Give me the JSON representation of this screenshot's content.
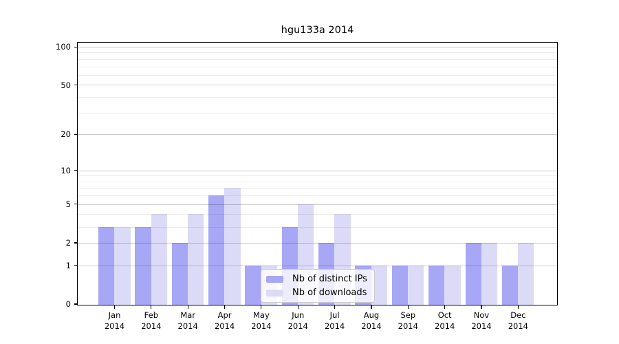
{
  "chart_data": {
    "type": "bar",
    "title": "hgu133a 2014",
    "categories": [
      "Jan",
      "Feb",
      "Mar",
      "Apr",
      "May",
      "Jun",
      "Jul",
      "Aug",
      "Sep",
      "Oct",
      "Nov",
      "Dec"
    ],
    "category_year": "2014",
    "series": [
      {
        "name": "Nb of distinct IPs",
        "color": "#a7a7f5",
        "values": [
          3,
          3,
          2,
          6,
          1,
          3,
          2,
          1,
          1,
          1,
          2,
          1
        ]
      },
      {
        "name": "Nb of downloads",
        "color": "#dbdbf8",
        "values": [
          3,
          4,
          4,
          7,
          1,
          5,
          4,
          1,
          1,
          1,
          2,
          2
        ]
      }
    ],
    "y_scale": "log1p",
    "ylim": [
      0,
      105
    ],
    "y_ticks_major": [
      0,
      1,
      2,
      5,
      10,
      20,
      50,
      100
    ],
    "y_gridlines_major": [
      1,
      2,
      5,
      10,
      20,
      50,
      100
    ],
    "y_gridlines_minor": [
      3,
      4,
      6,
      7,
      8,
      9,
      30,
      40,
      60,
      70,
      80,
      90
    ],
    "grid": true,
    "legend_position": "lower center inside",
    "xlabel": "",
    "ylabel": ""
  },
  "colors": {
    "background": "#ffffff",
    "spine": "#000000",
    "grid_major": "#cccccc",
    "grid_minor": "#ececec",
    "text": "#000000"
  }
}
